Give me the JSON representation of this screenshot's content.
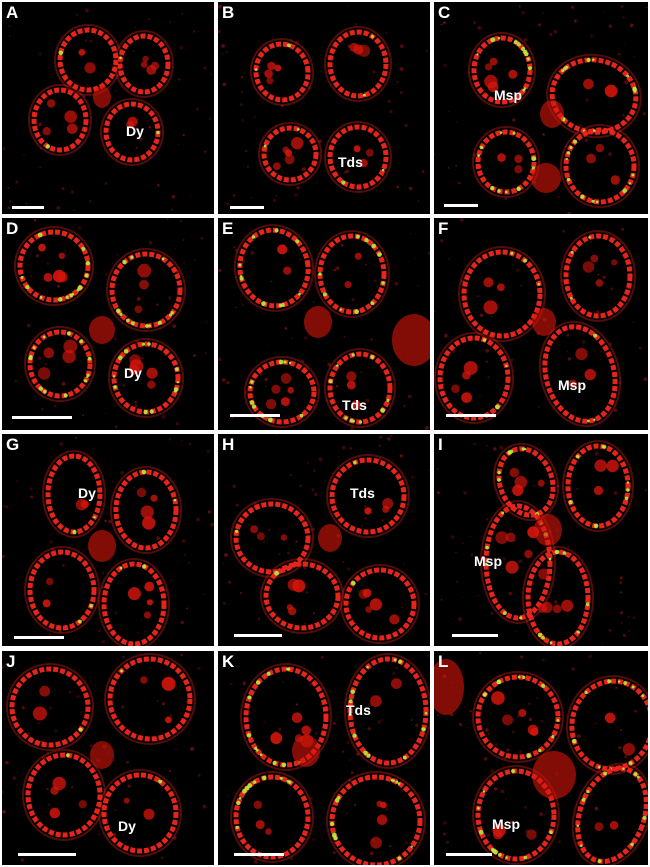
{
  "figure": {
    "background_color": "#ffffff",
    "panel_color": "#000000",
    "cell_wall_color": "#e8241a",
    "nucleus_color": "#d8150c",
    "signal_color": "#b6f03a",
    "label_color": "#ffffff"
  },
  "panels": [
    {
      "label": "A",
      "stage": "Dy"
    },
    {
      "label": "B",
      "stage": "Tds"
    },
    {
      "label": "C",
      "stage": "Msp"
    },
    {
      "label": "D",
      "stage": "Dy"
    },
    {
      "label": "E",
      "stage": "Tds"
    },
    {
      "label": "F",
      "stage": "Msp"
    },
    {
      "label": "G",
      "stage": "Dy"
    },
    {
      "label": "H",
      "stage": "Tds"
    },
    {
      "label": "I",
      "stage": "Msp"
    },
    {
      "label": "J",
      "stage": "Dy"
    },
    {
      "label": "K",
      "stage": "Tds"
    },
    {
      "label": "L",
      "stage": "Msp"
    }
  ]
}
